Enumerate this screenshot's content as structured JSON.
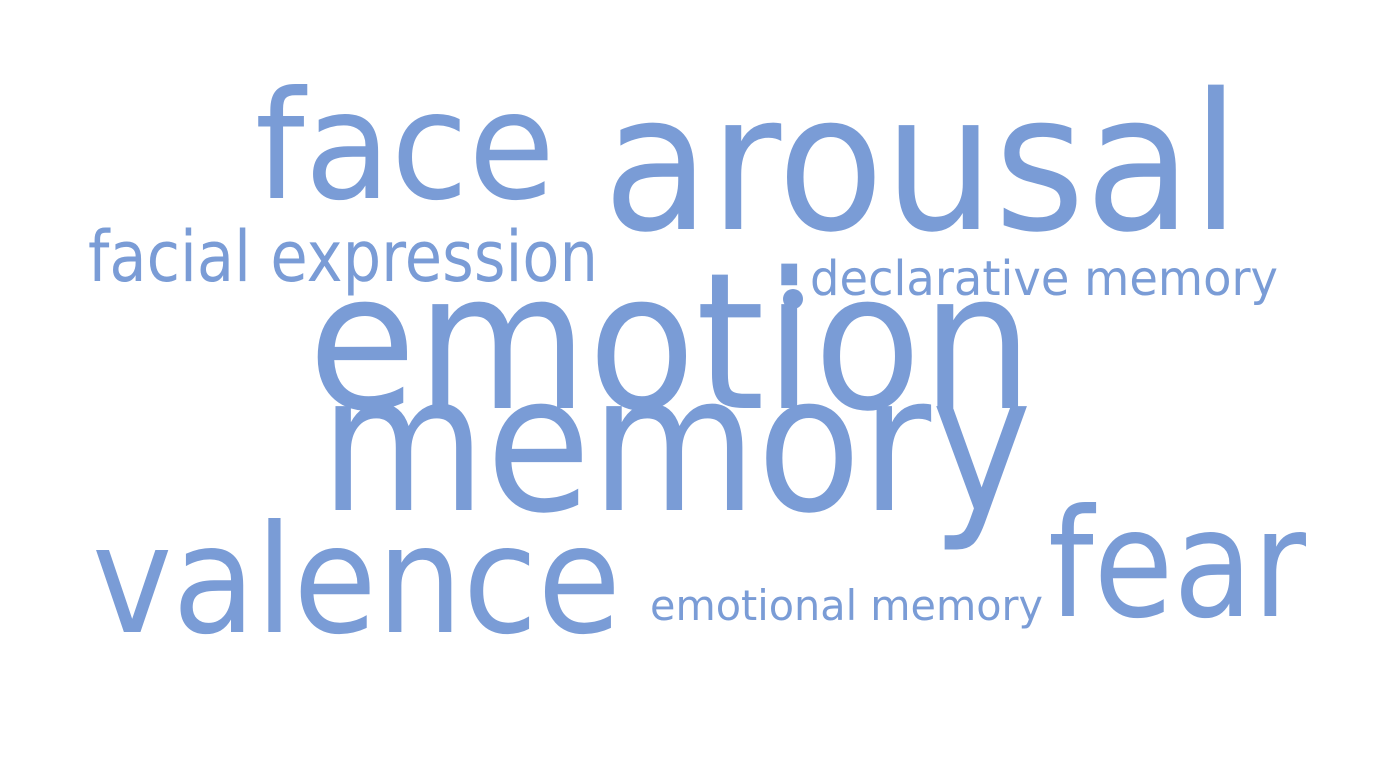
{
  "colors": {
    "word": "#7a9cd6",
    "background": "#ffffff"
  },
  "words": [
    {
      "key": "face",
      "text": "face"
    },
    {
      "key": "arousal",
      "text": "arousal"
    },
    {
      "key": "facial_expression",
      "text": "facial expression"
    },
    {
      "key": "declarative_memory",
      "text": "declarative memory"
    },
    {
      "key": "emotion",
      "text": "emotion"
    },
    {
      "key": "memory",
      "text": "memory"
    },
    {
      "key": "valence",
      "text": "valence"
    },
    {
      "key": "emotional_memory",
      "text": "emotional memory"
    },
    {
      "key": "fear",
      "text": "fear"
    }
  ]
}
